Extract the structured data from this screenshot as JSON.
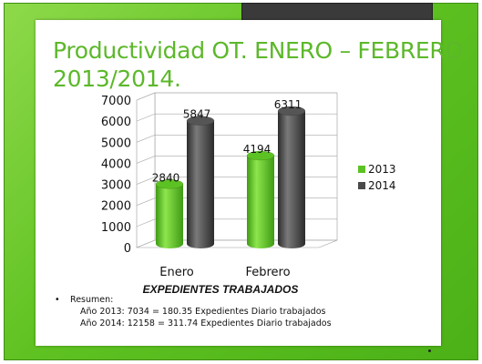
{
  "title": {
    "line1": "Productividad OT. ENERO – FEBRERO",
    "line2": "2013/2014."
  },
  "summary": {
    "heading": "Resumen:",
    "lines": [
      "Año 2013: 7034 = 180.35 Expedientes Diario trabajados",
      "Año 2014: 12158 = 311.74 Expedientes Diario trabajados"
    ]
  },
  "colors": {
    "series_2013": "#5cc223",
    "series_2014": "#4a4a4a",
    "title": "#5cb82a"
  },
  "chart_data": {
    "type": "bar",
    "categories": [
      "Enero",
      "Febrero"
    ],
    "series": [
      {
        "name": "2013",
        "values": [
          2840,
          4194
        ]
      },
      {
        "name": "2014",
        "values": [
          5847,
          6311
        ]
      }
    ],
    "xlabel": "EXPEDIENTES TRABAJADOS",
    "ylabel": "",
    "ylim": [
      0,
      7000
    ],
    "yticks": [
      0,
      1000,
      2000,
      3000,
      4000,
      5000,
      6000,
      7000
    ],
    "grid": true,
    "legend": "right",
    "style": "3d-cylinder"
  }
}
